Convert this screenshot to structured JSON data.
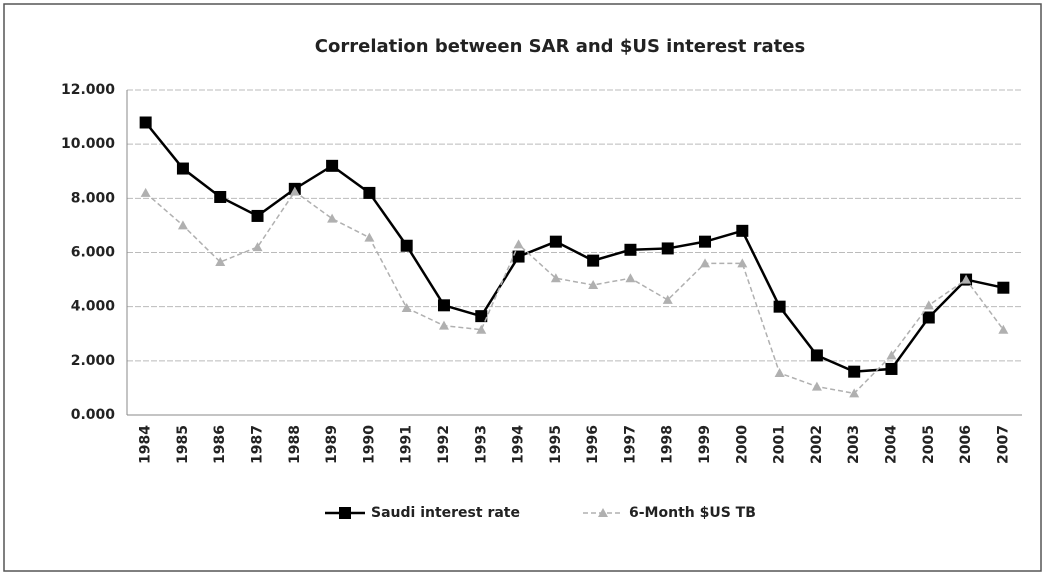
{
  "chart_data": {
    "type": "line",
    "title": "Correlation between SAR and $US interest rates",
    "categories": [
      "1984",
      "1985",
      "1986",
      "1987",
      "1988",
      "1989",
      "1990",
      "1991",
      "1992",
      "1993",
      "1994",
      "1995",
      "1996",
      "1997",
      "1998",
      "1999",
      "2000",
      "2001",
      "2002",
      "2003",
      "2004",
      "2005",
      "2006",
      "2007"
    ],
    "series": [
      {
        "name": "Saudi interest rate",
        "color": "#000000",
        "values": [
          10.8,
          9.1,
          8.05,
          7.35,
          8.35,
          9.2,
          8.2,
          6.25,
          4.05,
          3.65,
          5.85,
          6.4,
          5.7,
          6.1,
          6.15,
          6.4,
          6.8,
          4.0,
          2.2,
          1.6,
          1.7,
          3.6,
          5.0,
          4.7
        ]
      },
      {
        "name": "6-Month $US TB",
        "color": "#b0b0b0",
        "values": [
          8.2,
          7.0,
          5.65,
          6.2,
          8.25,
          7.25,
          6.55,
          3.95,
          3.3,
          3.15,
          6.3,
          5.05,
          4.8,
          5.05,
          4.25,
          5.6,
          5.6,
          1.55,
          1.05,
          0.8,
          2.2,
          4.05,
          5.0,
          3.15
        ]
      }
    ],
    "ylim": [
      0,
      12
    ],
    "yticks": [
      {
        "value": 0,
        "label": "0.000"
      },
      {
        "value": 2,
        "label": "2.000"
      },
      {
        "value": 4,
        "label": "4.000"
      },
      {
        "value": 6,
        "label": "6.000"
      },
      {
        "value": 8,
        "label": "8.000"
      },
      {
        "value": 10,
        "label": "10.000"
      },
      {
        "value": 12,
        "label": "12.000"
      }
    ],
    "grid": true,
    "legend": "bottom"
  }
}
